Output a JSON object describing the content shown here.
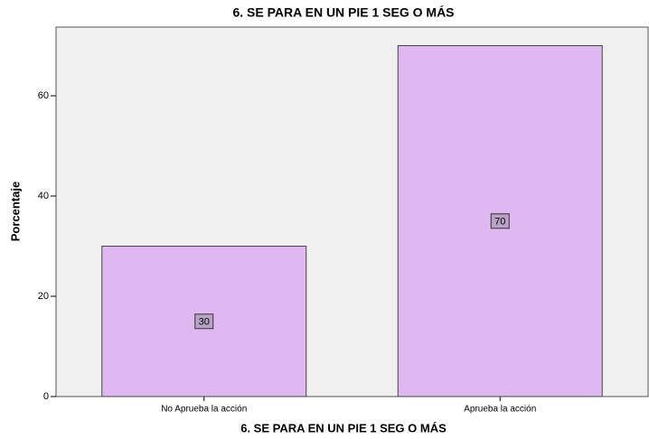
{
  "chart_data": {
    "type": "bar",
    "title": "6. SE PARA EN UN PIE 1 SEG O MÁS",
    "x_label": "6. SE PARA EN UN PIE 1 SEG O MÁS",
    "y_label": "Porcentaje",
    "categories": [
      "No Aprueba la acción",
      "Aprueba la acción"
    ],
    "values": [
      30,
      70
    ],
    "color": "#dfb8f2",
    "ylim": [
      0,
      73.7
    ],
    "yticks": [
      0,
      20,
      40,
      60
    ]
  }
}
